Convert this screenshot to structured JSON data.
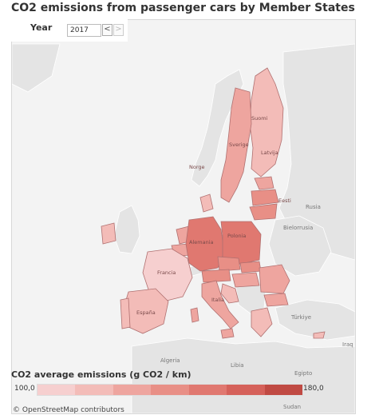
{
  "title": "CO2 emissions from passenger cars by Member States",
  "filter": {
    "label": "Year",
    "value": "2017",
    "prev_glyph": "<",
    "next_glyph": ">"
  },
  "legend": {
    "title": "CO2 average emissions (g CO2 / km)",
    "min": "100,0",
    "max": "180,0",
    "colors": [
      "#f6cfcf",
      "#f3bcb8",
      "#eea59f",
      "#e88f86",
      "#e07870",
      "#d5615a",
      "#c04a43"
    ]
  },
  "attribution": "© OpenStreetMap contributors",
  "map_labels": {
    "suomi": "Suomi",
    "norge": "Norge",
    "sverige": "Sverige",
    "latvija": "Latvija",
    "eesti": "Eesti",
    "bielorrusia": "Bielorrusia",
    "rusia": "Rusia",
    "polonia": "Polonia",
    "alemania": "Alemania",
    "francia": "Francia",
    "espana": "España",
    "italia": "Italia",
    "turkiye": "Türkiye",
    "algeria": "Algeria",
    "libia": "Libia",
    "egipto": "Egipto",
    "iraq": "Iraq",
    "sudan": "Sudan"
  },
  "country_colors": {
    "non_eu": "#e4e4e4",
    "low": "#f6cfcf",
    "mid_low": "#f3bcb8",
    "mid": "#eea59f",
    "mid_high": "#e88f86",
    "high": "#e07870",
    "border": "#b07070"
  }
}
